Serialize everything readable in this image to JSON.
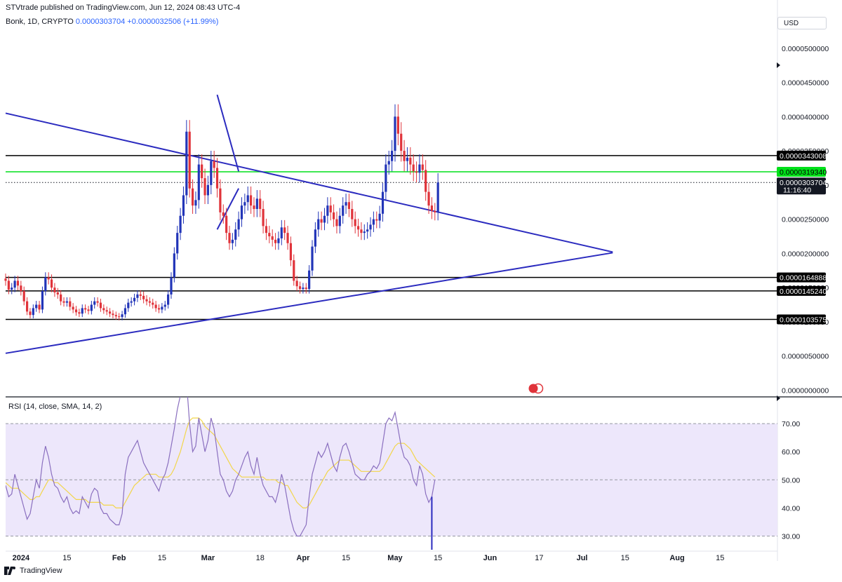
{
  "header": {
    "published": "STVtrade published on TradingView.com, Jun 12, 2024 08:43 UTC-4",
    "symbol": "Bonk, 1D, CRYPTO",
    "price": "0.0000303704",
    "change": "+0.0000032506 (+11.99%)"
  },
  "currency_button": "USD",
  "rsi_title": "RSI (14, close, SMA, 14, 2)",
  "brand": "TradingView",
  "colors": {
    "up": "#2235b8",
    "down": "#e0333a",
    "trendline": "#2b2bbf",
    "support": "#000000",
    "highlight": "#00e01a",
    "rsi": "#8a6fbf",
    "rsi_ma": "#f2d64b",
    "rsi_band": "#ede7fb"
  },
  "chart_data": [
    {
      "type": "candlestick",
      "y_axis_ticks": [
        "0.0000500000",
        "0.0000450000",
        "0.0000400000",
        "0.0000350000",
        "0.0000300000",
        "0.0000250000",
        "0.0000200000",
        "0.0000150000",
        "0.0000100000",
        "0.0000050000",
        "0.0000000000"
      ],
      "ylim": [
        0,
        5.25e-05
      ],
      "x_axis_labels": [
        "2024",
        "15",
        "Feb",
        "15",
        "Mar",
        "18",
        "Apr",
        "15",
        "May",
        "15",
        "Jun",
        "17",
        "Jul",
        "15",
        "Aug",
        "15"
      ],
      "levels": [
        {
          "label": "0.0000343008",
          "value": 3.43008e-05,
          "color": "#000000"
        },
        {
          "label": "0.0000319340",
          "value": 3.1934e-05,
          "color": "#00e01a"
        },
        {
          "label": "0.0000164888",
          "value": 1.64888e-05,
          "color": "#000000"
        },
        {
          "label": "0.0000145240",
          "value": 1.4524e-05,
          "color": "#000000"
        },
        {
          "label": "0.0000103575",
          "value": 1.03575e-05,
          "color": "#000000"
        }
      ],
      "last_price": {
        "label": "0.0000303704",
        "countdown": "11:16:40",
        "value": 3.03704e-05
      },
      "trendlines": [
        {
          "from": [
            "Dec 26, 2023",
            4.05e-05
          ],
          "to": [
            "Jul 11, 2024",
            2.02e-05
          ]
        },
        {
          "from": [
            "Dec 26, 2023",
            5.4e-06
          ],
          "to": [
            "Jul 11, 2024",
            2.01e-05
          ]
        },
        {
          "from": [
            "Mar 4, 2024",
            4.32e-05
          ],
          "to": [
            "Mar 11, 2024",
            3.2e-05
          ]
        },
        {
          "from": [
            "Mar 4, 2024",
            2.35e-05
          ],
          "to": [
            "Mar 11, 2024",
            2.95e-05
          ]
        }
      ],
      "candles": {
        "start_date": "2023-12-26",
        "close": [
          1.6e-05,
          1.47e-05,
          1.5e-05,
          1.6e-05,
          1.53e-05,
          1.45e-05,
          1.3e-05,
          1.15e-05,
          1.1e-05,
          1.2e-05,
          1.25e-05,
          1.18e-05,
          1.45e-05,
          1.65e-05,
          1.62e-05,
          1.5e-05,
          1.43e-05,
          1.4e-05,
          1.3e-05,
          1.28e-05,
          1.3e-05,
          1.22e-05,
          1.18e-05,
          1.14e-05,
          1.12e-05,
          1.2e-05,
          1.18e-05,
          1.16e-05,
          1.25e-05,
          1.3e-05,
          1.28e-05,
          1.2e-05,
          1.17e-05,
          1.15e-05,
          1.12e-05,
          1.1e-05,
          1.08e-05,
          1.07e-05,
          1.11e-05,
          1.2e-05,
          1.28e-05,
          1.3e-05,
          1.35e-05,
          1.4e-05,
          1.38e-05,
          1.33e-05,
          1.3e-05,
          1.28e-05,
          1.25e-05,
          1.2e-05,
          1.18e-05,
          1.22e-05,
          1.25e-05,
          1.4e-05,
          1.65e-05,
          2e-05,
          2.3e-05,
          2.55e-05,
          2.85e-05,
          3.78e-05,
          2.95e-05,
          2.7e-05,
          2.78e-05,
          3.3e-05,
          3.1e-05,
          2.85e-05,
          3e-05,
          3.35e-05,
          3.25e-05,
          2.95e-05,
          2.6e-05,
          2.55e-05,
          2.3e-05,
          2.15e-05,
          2.2e-05,
          2.35e-05,
          2.5e-05,
          2.7e-05,
          2.75e-05,
          2.85e-05,
          2.7e-05,
          2.65e-05,
          2.8e-05,
          2.65e-05,
          2.4e-05,
          2.3e-05,
          2.25e-05,
          2.2e-05,
          2.15e-05,
          2.22e-05,
          2.38e-05,
          2.3e-05,
          2.15e-05,
          1.9e-05,
          1.6e-05,
          1.52e-05,
          1.48e-05,
          1.5e-05,
          1.48e-05,
          1.75e-05,
          2.1e-05,
          2.35e-05,
          2.5e-05,
          2.45e-05,
          2.55e-05,
          2.7e-05,
          2.6e-05,
          2.5e-05,
          2.4e-05,
          2.55e-05,
          2.7e-05,
          2.75e-05,
          2.65e-05,
          2.5e-05,
          2.4e-05,
          2.35e-05,
          2.3e-05,
          2.32e-05,
          2.35e-05,
          2.42e-05,
          2.5e-05,
          2.48e-05,
          2.58e-05,
          2.9e-05,
          3.3e-05,
          3.35e-05,
          3.5e-05,
          4e-05,
          3.75e-05,
          3.5e-05,
          3.35e-05,
          3.4e-05,
          3.3e-05,
          3.2e-05,
          3.18e-05,
          3.3e-05,
          3.22e-05,
          2.9e-05,
          2.7e-05,
          2.62e-05,
          2.6e-05,
          3.03704e-05
        ]
      }
    },
    {
      "type": "line",
      "title": "RSI (14, close, SMA, 14, 2)",
      "y_axis_ticks": [
        "70.00",
        "60.00",
        "50.00",
        "40.00",
        "30.00"
      ],
      "ylim": [
        25,
        85
      ],
      "band": [
        30,
        70
      ],
      "midline": 50,
      "series": [
        {
          "values": [
            48,
            44,
            45,
            52,
            48,
            44,
            40,
            36,
            38,
            44,
            50,
            47,
            56,
            62,
            58,
            52,
            48,
            47,
            44,
            42,
            44,
            40,
            38,
            39,
            38,
            44,
            42,
            40,
            45,
            47,
            46,
            40,
            38,
            38,
            36,
            35,
            34,
            34,
            38,
            52,
            58,
            60,
            62,
            64,
            60,
            56,
            54,
            52,
            50,
            48,
            46,
            50,
            52,
            56,
            62,
            68,
            75,
            80,
            80,
            85,
            70,
            60,
            62,
            72,
            66,
            60,
            64,
            72,
            68,
            60,
            52,
            50,
            46,
            44,
            46,
            50,
            52,
            55,
            58,
            60,
            55,
            52,
            58,
            52,
            48,
            46,
            44,
            44,
            42,
            46,
            52,
            48,
            42,
            36,
            32,
            30,
            30,
            32,
            34,
            44,
            52,
            56,
            60,
            58,
            60,
            63,
            59,
            55,
            53,
            58,
            62,
            63,
            60,
            56,
            52,
            51,
            50,
            50,
            52,
            53,
            55,
            54,
            56,
            63,
            70,
            72,
            71,
            74,
            68,
            62,
            58,
            57,
            55,
            50,
            48,
            55,
            52,
            45,
            42,
            44,
            50
          ]
        },
        {
          "values": [
            49,
            48,
            47,
            47,
            47,
            46,
            45,
            44,
            43,
            43,
            44,
            44,
            46,
            48,
            50,
            50,
            49,
            49,
            48,
            47,
            46,
            45,
            44,
            43,
            43,
            43,
            43,
            42,
            42,
            42,
            42,
            42,
            41,
            41,
            41,
            41,
            40,
            40,
            40,
            42,
            44,
            46,
            48,
            49,
            50,
            51,
            52,
            52,
            52,
            52,
            51,
            51,
            51,
            51,
            52,
            54,
            57,
            60,
            64,
            68,
            71,
            72,
            72,
            72,
            71,
            69,
            68,
            67,
            66,
            64,
            62,
            60,
            58,
            56,
            54,
            53,
            52,
            51,
            51,
            51,
            51,
            51,
            51,
            51,
            51,
            50,
            50,
            50,
            50,
            49,
            49,
            48,
            48,
            46,
            44,
            42,
            41,
            40,
            40,
            41,
            43,
            45,
            47,
            49,
            51,
            53,
            54,
            55,
            56,
            57,
            57,
            57,
            57,
            56,
            55,
            54,
            53,
            53,
            53,
            53,
            53,
            53,
            53,
            54,
            56,
            58,
            60,
            62,
            63,
            63,
            63,
            62,
            61,
            59,
            57,
            56,
            55,
            54,
            53,
            52,
            51
          ]
        }
      ]
    }
  ]
}
